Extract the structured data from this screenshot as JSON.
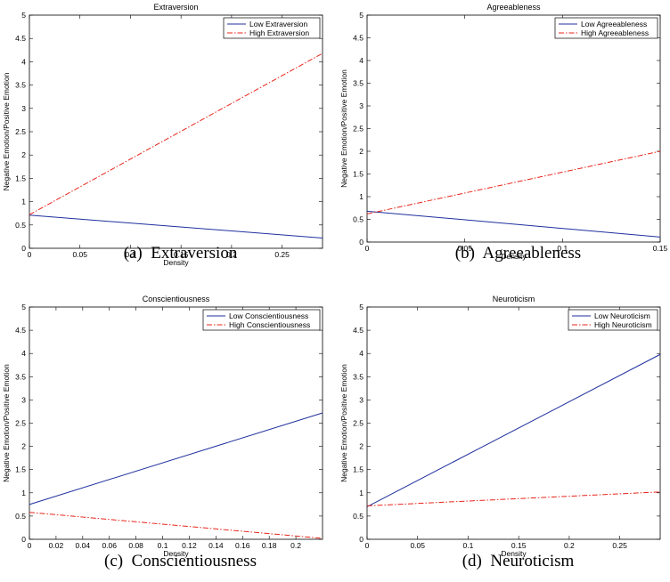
{
  "chart_data": [
    {
      "type": "line",
      "title": "Extraversion",
      "caption": "(a)  Extraversion",
      "xlabel": "Density",
      "ylabel": "Negative Emotion/Positive Emotion",
      "xlim": [
        0,
        0.29
      ],
      "ylim": [
        0,
        5
      ],
      "xticks": [
        "0",
        "0.05",
        "0.1",
        "0.15",
        "0.2",
        "0.25"
      ],
      "yticks": [
        "0",
        "0.5",
        "1",
        "1.5",
        "2",
        "2.5",
        "3",
        "3.5",
        "4",
        "4.5",
        "5"
      ],
      "legend_position": "top-right",
      "series": [
        {
          "name": "Low Extraversion",
          "color": "#1f2f9e",
          "style": "solid",
          "x": [
            0,
            0.29
          ],
          "y": [
            0.71,
            0.22
          ]
        },
        {
          "name": "High Extraversion",
          "color": "#e8251b",
          "style": "dashdot",
          "x": [
            0,
            0.29
          ],
          "y": [
            0.72,
            4.18
          ]
        }
      ]
    },
    {
      "type": "line",
      "title": "Agreeableness",
      "caption": "(b)  Agreeableness",
      "xlabel": "Density",
      "ylabel": "Negative Emotion/Positive Emotion",
      "xlim": [
        0,
        0.15
      ],
      "ylim": [
        0,
        5
      ],
      "xticks": [
        "0",
        "0.05",
        "0.1",
        "0.15"
      ],
      "yticks": [
        "0",
        "0.5",
        "1",
        "1.5",
        "2",
        "2.5",
        "3",
        "3.5",
        "4",
        "4.5",
        "5"
      ],
      "legend_position": "top-right",
      "series": [
        {
          "name": "Low Agreeableness",
          "color": "#1f2f9e",
          "style": "solid",
          "x": [
            0,
            0.15
          ],
          "y": [
            0.68,
            0.11
          ]
        },
        {
          "name": "High Agreeableness",
          "color": "#e8251b",
          "style": "dashdot",
          "x": [
            0,
            0.15
          ],
          "y": [
            0.62,
            2.0
          ]
        }
      ]
    },
    {
      "type": "line",
      "title": "Conscientiousness",
      "caption": "(c)  Conscientiousness",
      "xlabel": "Density",
      "ylabel": "Negative Emotion/Positive Emotion",
      "xlim": [
        0,
        0.22
      ],
      "ylim": [
        0,
        5
      ],
      "xticks": [
        "0",
        "0.02",
        "0.04",
        "0.06",
        "0.08",
        "0.1",
        "0.12",
        "0.14",
        "0.16",
        "0.18",
        "0.2"
      ],
      "yticks": [
        "0",
        "0.5",
        "1",
        "1.5",
        "2",
        "2.5",
        "3",
        "3.5",
        "4",
        "4.5",
        "5"
      ],
      "legend_position": "top-right",
      "series": [
        {
          "name": "Low Conscientiousness",
          "color": "#1f2f9e",
          "style": "solid",
          "x": [
            0,
            0.22
          ],
          "y": [
            0.75,
            2.72
          ]
        },
        {
          "name": "High Conscientiousness",
          "color": "#e8251b",
          "style": "dashdot",
          "x": [
            0,
            0.22
          ],
          "y": [
            0.58,
            0.02
          ]
        }
      ]
    },
    {
      "type": "line",
      "title": "Neuroticism",
      "caption": "(d)  Neuroticism",
      "xlabel": "Density",
      "ylabel": "Negative Emotion/Positive Emotion",
      "xlim": [
        0,
        0.29
      ],
      "ylim": [
        0,
        5
      ],
      "xticks": [
        "0",
        "0.05",
        "0.1",
        "0.15",
        "0.2",
        "0.25"
      ],
      "yticks": [
        "0",
        "0.5",
        "1",
        "1.5",
        "2",
        "2.5",
        "3",
        "3.5",
        "4",
        "4.5",
        "5"
      ],
      "legend_position": "top-right",
      "series": [
        {
          "name": "Low Neuroticism",
          "color": "#1f2f9e",
          "style": "solid",
          "x": [
            0,
            0.29
          ],
          "y": [
            0.7,
            3.98
          ]
        },
        {
          "name": "High Neuroticism",
          "color": "#e8251b",
          "style": "dashdot",
          "x": [
            0,
            0.29
          ],
          "y": [
            0.72,
            1.02
          ]
        }
      ]
    }
  ]
}
